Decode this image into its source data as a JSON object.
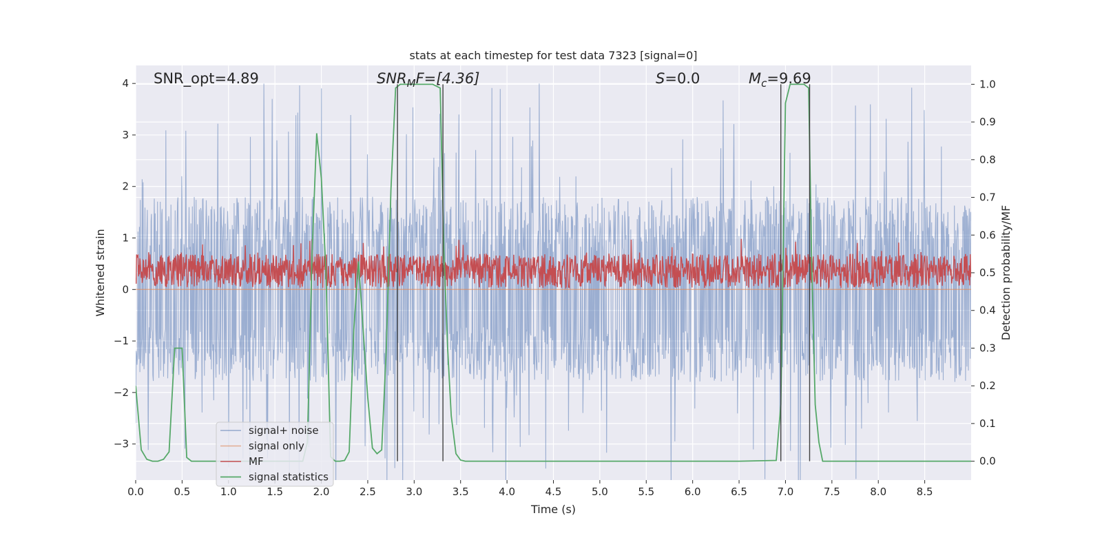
{
  "chart_data": {
    "type": "line",
    "title": "stats at each timestep for test data 7323 [signal=0]",
    "xlabel": "Time (s)",
    "ylabel": "Whitened strain",
    "y2label": "Detection probability/MF",
    "xlim": [
      0,
      9.0
    ],
    "ylim": [
      -3.7,
      4.35
    ],
    "y2lim": [
      -0.05,
      1.05
    ],
    "xticks": [
      0.0,
      0.5,
      1.0,
      1.5,
      2.0,
      2.5,
      3.0,
      3.5,
      4.0,
      4.5,
      5.0,
      5.5,
      6.0,
      6.5,
      7.0,
      7.5,
      8.0,
      8.5
    ],
    "xtick_labels": [
      "0.0",
      "0.5",
      "1.0",
      "1.5",
      "2.0",
      "2.5",
      "3.0",
      "3.5",
      "4.0",
      "4.5",
      "5.0",
      "5.5",
      "6.0",
      "6.5",
      "7.0",
      "7.5",
      "8.0",
      "8.5"
    ],
    "yticks": [
      4,
      3,
      2,
      1,
      0,
      -1,
      -2,
      -3
    ],
    "ytick_labels": [
      "4",
      "3",
      "2",
      "1",
      "0",
      "−1",
      "−2",
      "−3"
    ],
    "y2ticks": [
      1.0,
      0.9,
      0.8,
      0.7,
      0.6,
      0.5,
      0.4,
      0.3,
      0.2,
      0.1,
      0.0
    ],
    "y2tick_labels": [
      "1.0",
      "0.9",
      "0.8",
      "0.7",
      "0.6",
      "0.5",
      "0.4",
      "0.3",
      "0.2",
      "0.1",
      "0.0"
    ],
    "grid": true,
    "legend_position": "lower-left",
    "annotations": {
      "snr_opt": "SNR_opt=4.89",
      "snr_mf_main": "SNR",
      "snr_mf_sub": "M",
      "snr_mf_rest": "F=[4.36]",
      "s_main": "S",
      "s_rest": "=0.0",
      "mc_main": "M",
      "mc_sub": "c",
      "mc_rest": "=9.69"
    },
    "vertical_lines": [
      2.82,
      3.31,
      6.95,
      7.26
    ],
    "series": [
      {
        "name": "signal+ noise",
        "color": "#4c72b0",
        "axis": "left",
        "noise": {
          "center": 0.0,
          "band": 1.8,
          "spike_max": 4.0,
          "samples": 1800
        }
      },
      {
        "name": "signal only",
        "color": "#dd8452",
        "axis": "left",
        "constant": 0.0
      },
      {
        "name": "MF",
        "color": "#c44e52",
        "axis": "right",
        "noise": {
          "base": 0.505,
          "amp": 0.045,
          "spike_max": 0.59,
          "samples": 1800
        }
      },
      {
        "name": "signal statistics",
        "color": "#55a868",
        "axis": "right",
        "x": [
          0.0,
          0.06,
          0.12,
          0.18,
          0.24,
          0.3,
          0.36,
          0.42,
          0.5,
          0.55,
          0.6,
          0.7,
          0.8,
          1.0,
          1.2,
          1.4,
          1.6,
          1.8,
          1.85,
          1.9,
          1.95,
          2.0,
          2.05,
          2.1,
          2.15,
          2.2,
          2.25,
          2.3,
          2.35,
          2.4,
          2.45,
          2.5,
          2.55,
          2.6,
          2.65,
          2.7,
          2.75,
          2.8,
          2.85,
          2.9,
          3.0,
          3.1,
          3.2,
          3.28,
          3.32,
          3.36,
          3.4,
          3.45,
          3.5,
          3.55,
          4.0,
          5.0,
          6.0,
          6.5,
          6.9,
          6.95,
          7.0,
          7.05,
          7.1,
          7.2,
          7.25,
          7.28,
          7.32,
          7.36,
          7.4,
          7.45,
          8.0,
          9.0
        ],
        "y": [
          0.2,
          0.03,
          0.005,
          0.0,
          0.0,
          0.005,
          0.025,
          0.3,
          0.3,
          0.01,
          0.0,
          0.0,
          0.0,
          0.0,
          0.0,
          0.0,
          0.0,
          0.0,
          0.05,
          0.55,
          0.87,
          0.75,
          0.5,
          0.012,
          0.0,
          0.0,
          0.002,
          0.025,
          0.35,
          0.53,
          0.35,
          0.17,
          0.035,
          0.02,
          0.03,
          0.3,
          0.72,
          0.99,
          1.0,
          1.0,
          1.0,
          1.0,
          1.0,
          0.99,
          0.56,
          0.3,
          0.12,
          0.02,
          0.003,
          0.0,
          0.0,
          0.0,
          0.0,
          0.0,
          0.002,
          0.15,
          0.95,
          1.0,
          1.0,
          1.0,
          0.99,
          0.55,
          0.15,
          0.05,
          0.0,
          0.0,
          0.0,
          0.0
        ]
      }
    ]
  }
}
